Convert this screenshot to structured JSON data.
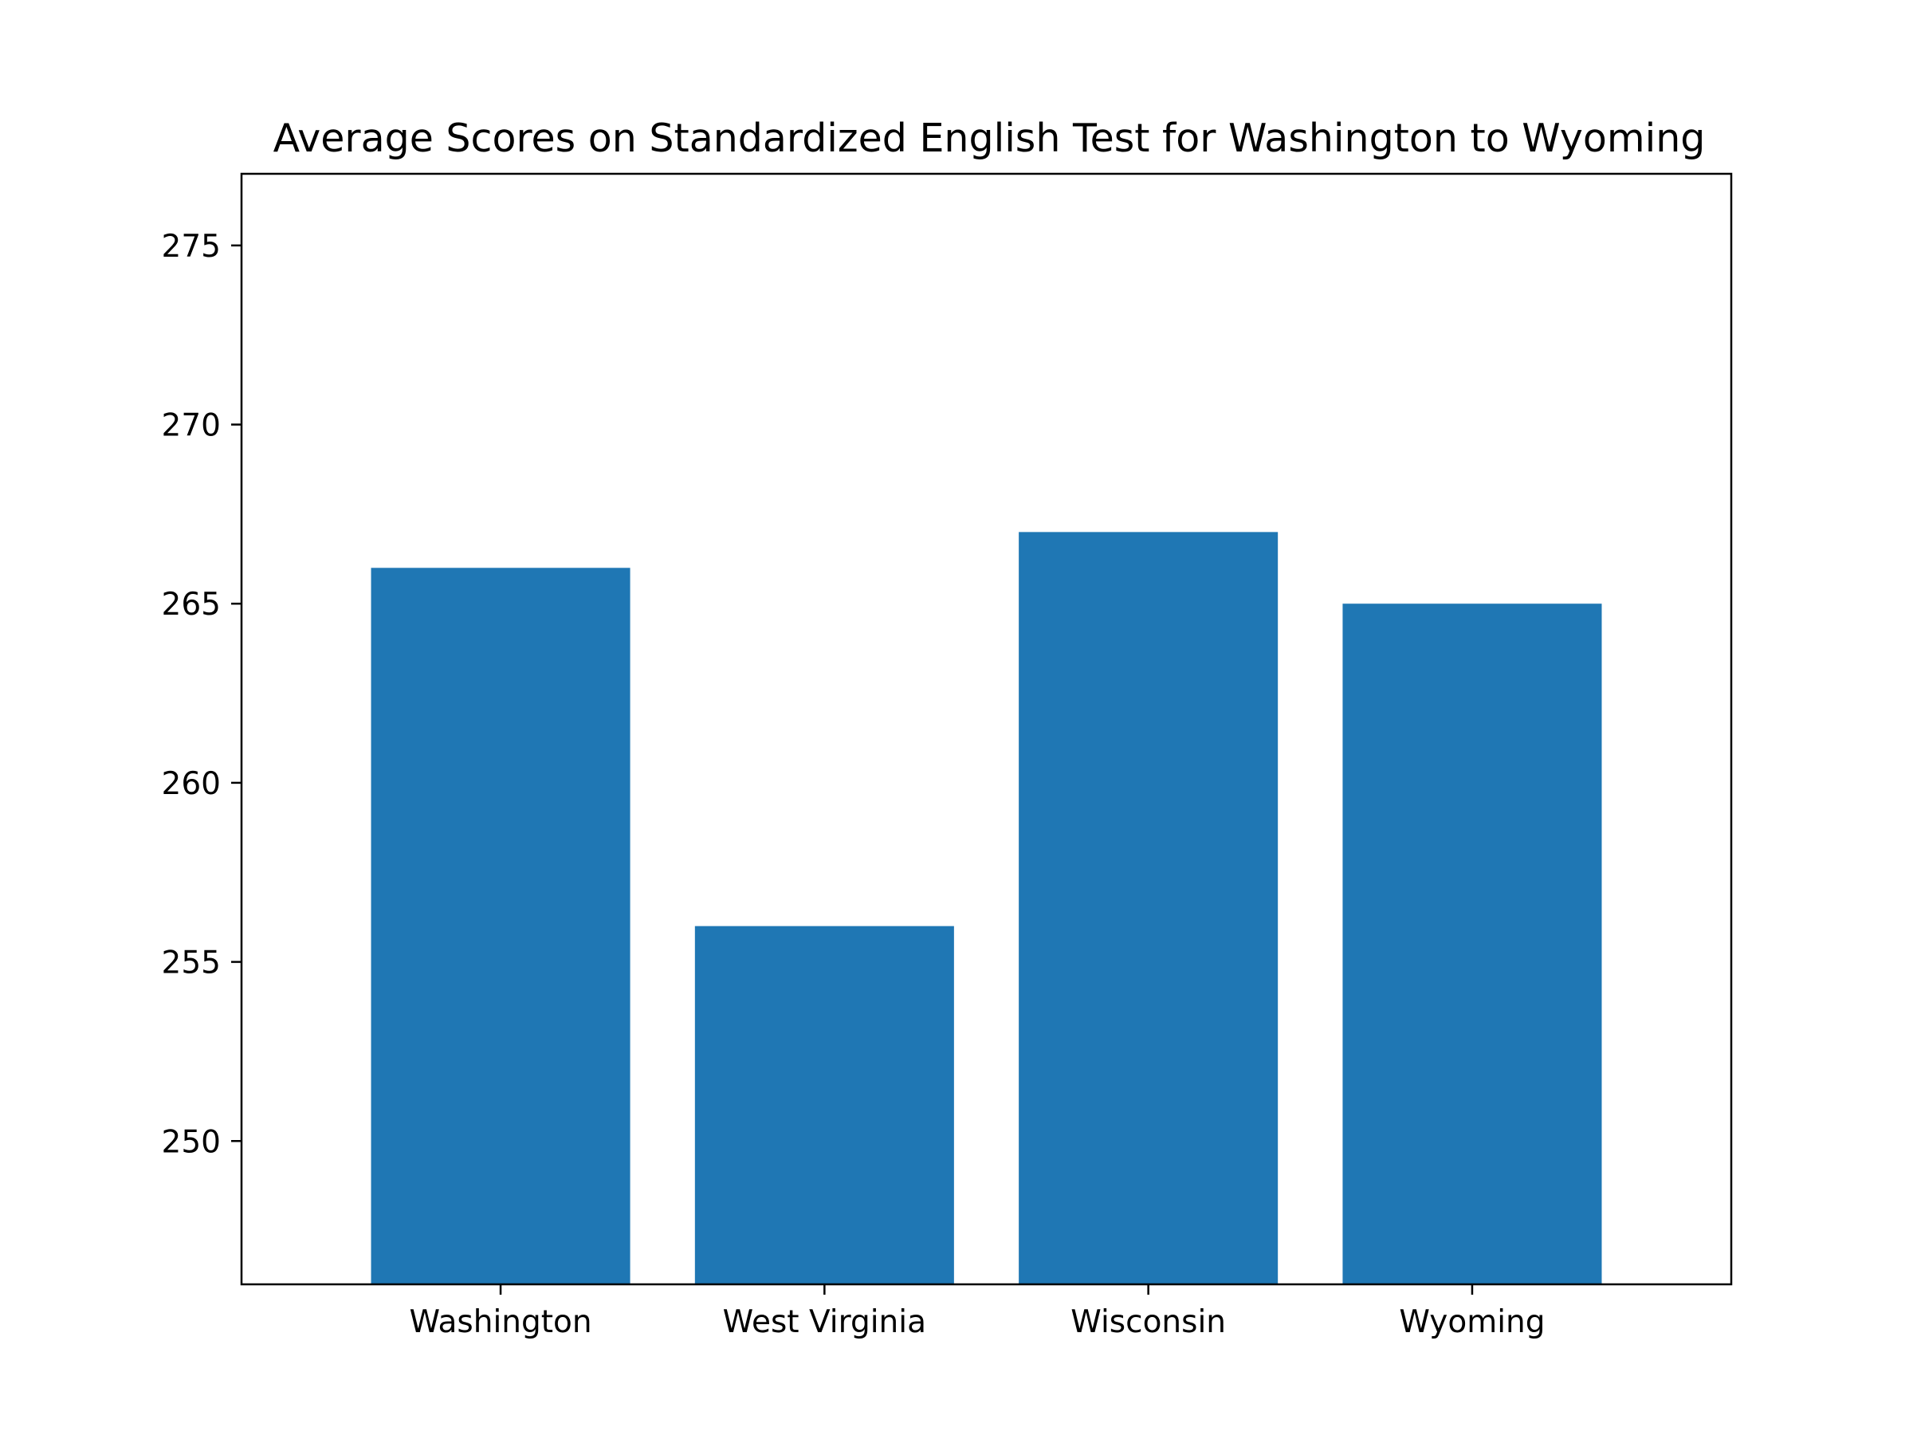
{
  "chart_data": {
    "type": "bar",
    "title": "Average Scores on Standardized English Test for Washington to Wyoming",
    "xlabel": "",
    "ylabel": "",
    "categories": [
      "Washington",
      "West Virginia",
      "Wisconsin",
      "Wyoming"
    ],
    "values": [
      266,
      256,
      267,
      265
    ],
    "ylim": [
      246,
      277
    ],
    "yticks": [
      250,
      255,
      260,
      265,
      270,
      275
    ],
    "bar_color": "#1f77b4",
    "grid": false,
    "legend": "none"
  }
}
